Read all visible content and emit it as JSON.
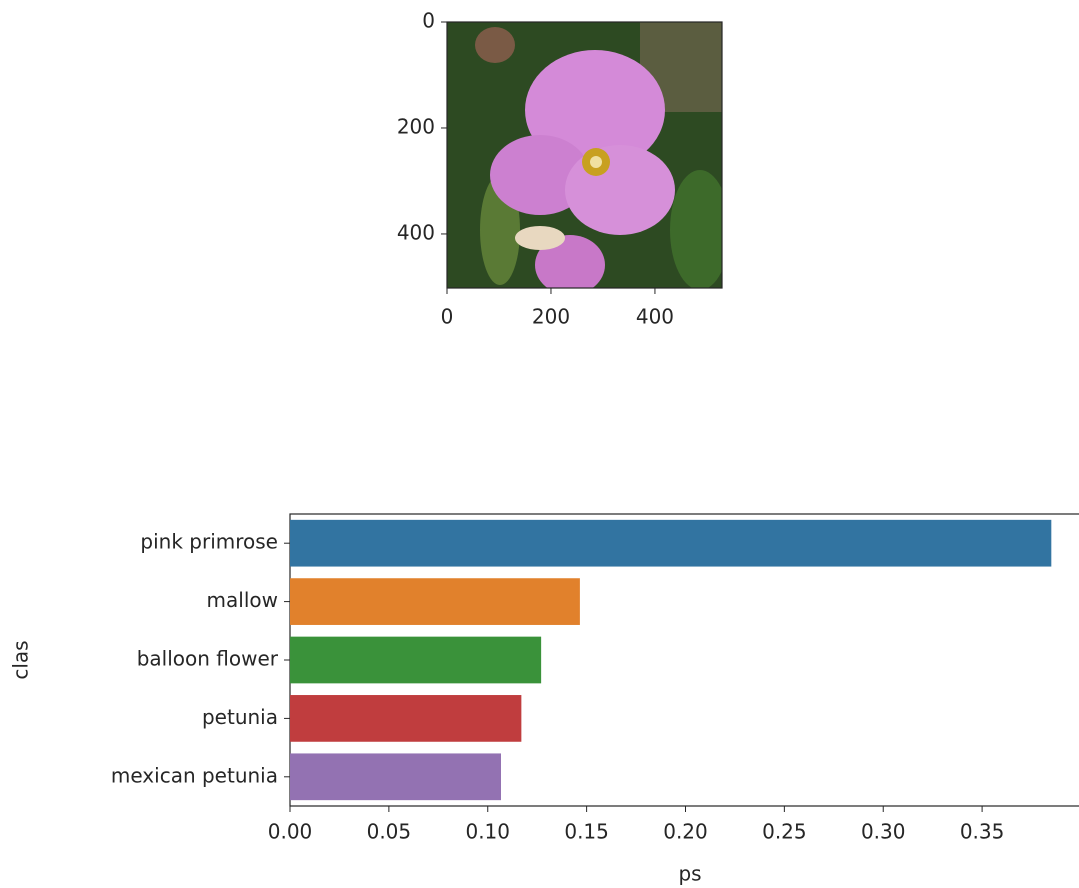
{
  "chart_data": [
    {
      "type": "image",
      "xlim": [
        0,
        529
      ],
      "ylim": [
        502,
        0
      ],
      "xticks": [
        0,
        200,
        400
      ],
      "yticks": [
        0,
        200,
        400
      ]
    },
    {
      "type": "barh",
      "categories": [
        "pink primrose",
        "mallow",
        "balloon flower",
        "petunia",
        "mexican petunia"
      ],
      "values": [
        0.385,
        0.1466,
        0.127,
        0.117,
        0.1067
      ],
      "colors": [
        "#3274a1",
        "#e1812c",
        "#3a923a",
        "#c03d3e",
        "#9372b2"
      ],
      "xlim": [
        0,
        0.399
      ],
      "xticks": [
        {
          "value": 0,
          "label": "0.00"
        },
        {
          "value": 0.05,
          "label": "0.05"
        },
        {
          "value": 0.1,
          "label": "0.10"
        },
        {
          "value": 0.15,
          "label": "0.15"
        },
        {
          "value": 0.2,
          "label": "0.20"
        },
        {
          "value": 0.25,
          "label": "0.25"
        },
        {
          "value": 0.3,
          "label": "0.30"
        },
        {
          "value": 0.35,
          "label": "0.35"
        }
      ],
      "xlabel": "ps",
      "ylabel": "clas"
    }
  ]
}
